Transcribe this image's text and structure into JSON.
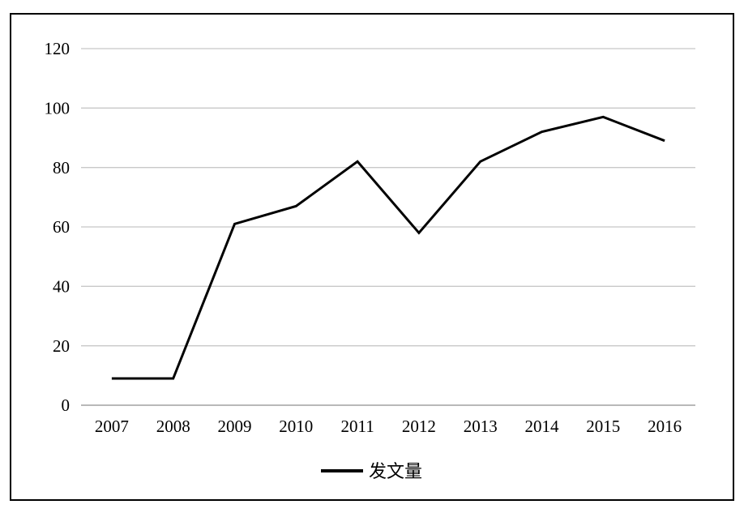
{
  "figure": {
    "background": "#ffffff",
    "border_color": "#000000"
  },
  "chart_data": {
    "type": "line",
    "title": "",
    "categories": [
      "2007",
      "2008",
      "2009",
      "2010",
      "2011",
      "2012",
      "2013",
      "2014",
      "2015",
      "2016"
    ],
    "series": [
      {
        "name": "发文量",
        "values": [
          9,
          9,
          61,
          67,
          82,
          58,
          82,
          92,
          97,
          89
        ]
      }
    ],
    "xlabel": "",
    "ylabel": "",
    "ylim": [
      0,
      120
    ],
    "yticks": [
      0,
      20,
      40,
      60,
      80,
      100,
      120
    ],
    "grid": true,
    "legend_position": "bottom",
    "legend": [
      "发文量"
    ],
    "colors": {
      "line": "#000000",
      "gridline": "#c8c8c8",
      "axis_line": "#b8b8b8",
      "tick_label": "#000000",
      "legend_text": "#000000"
    }
  }
}
